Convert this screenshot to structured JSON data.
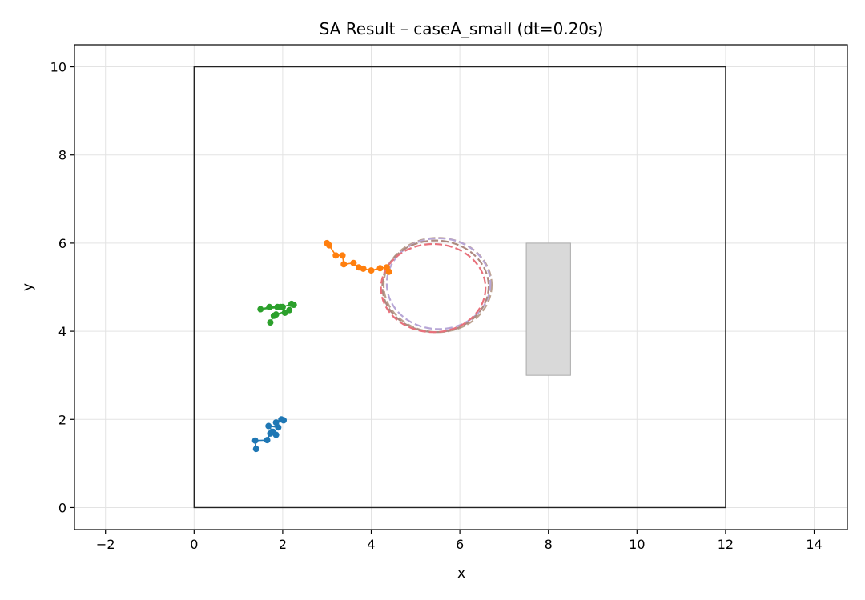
{
  "chart_data": {
    "type": "scatter",
    "title": "SA Result – caseA_small (dt=0.20s)",
    "xlabel": "x",
    "ylabel": "y",
    "xlim": [
      -2.7,
      14.75
    ],
    "ylim": [
      -0.5,
      10.5
    ],
    "x_ticks": [
      -2,
      0,
      2,
      4,
      6,
      8,
      10,
      12,
      14
    ],
    "y_ticks": [
      0,
      2,
      4,
      6,
      8,
      10
    ],
    "grid": true,
    "boundary": {
      "x": [
        0,
        12
      ],
      "y": [
        0,
        10
      ],
      "color": "#222222"
    },
    "obstacle": {
      "x": [
        7.5,
        8.5
      ],
      "y": [
        3.0,
        6.0
      ],
      "fill": "#d9d9d9",
      "stroke": "#aaaaaa"
    },
    "ellipses": [
      {
        "cx": 5.5,
        "cy": 5.05,
        "rx": 1.22,
        "ry": 1.07,
        "color": "#bca18f"
      },
      {
        "cx": 5.52,
        "cy": 5.08,
        "rx": 1.17,
        "ry": 1.03,
        "color": "#b7a6d6"
      },
      {
        "cx": 5.45,
        "cy": 5.02,
        "rx": 1.2,
        "ry": 1.04,
        "color": "#ad8a80"
      },
      {
        "cx": 5.4,
        "cy": 4.98,
        "rx": 1.18,
        "ry": 1.0,
        "color": "#e8707b"
      }
    ],
    "series": [
      {
        "color": "#1f77b4",
        "points": [
          [
            1.4,
            1.33
          ],
          [
            1.38,
            1.52
          ],
          [
            1.65,
            1.53
          ],
          [
            1.72,
            1.68
          ],
          [
            1.85,
            1.65
          ],
          [
            1.78,
            1.72
          ],
          [
            1.68,
            1.85
          ],
          [
            1.9,
            1.82
          ],
          [
            1.85,
            1.93
          ],
          [
            1.97,
            2.0
          ],
          [
            2.02,
            1.98
          ]
        ]
      },
      {
        "color": "#ff7f0e",
        "points": [
          [
            3.0,
            6.0
          ],
          [
            3.05,
            5.95
          ],
          [
            3.2,
            5.72
          ],
          [
            3.35,
            5.72
          ],
          [
            3.38,
            5.52
          ],
          [
            3.6,
            5.55
          ],
          [
            3.72,
            5.45
          ],
          [
            3.82,
            5.42
          ],
          [
            4.0,
            5.38
          ],
          [
            4.2,
            5.43
          ],
          [
            4.35,
            5.45
          ],
          [
            4.4,
            5.35
          ]
        ]
      },
      {
        "color": "#2ca02c",
        "points": [
          [
            1.72,
            4.2
          ],
          [
            1.8,
            4.35
          ],
          [
            1.85,
            4.38
          ],
          [
            2.15,
            4.48
          ],
          [
            2.05,
            4.42
          ],
          [
            1.95,
            4.55
          ],
          [
            1.88,
            4.55
          ],
          [
            1.7,
            4.55
          ],
          [
            1.5,
            4.5
          ],
          [
            2.0,
            4.55
          ],
          [
            2.2,
            4.62
          ],
          [
            2.25,
            4.6
          ]
        ]
      }
    ]
  }
}
